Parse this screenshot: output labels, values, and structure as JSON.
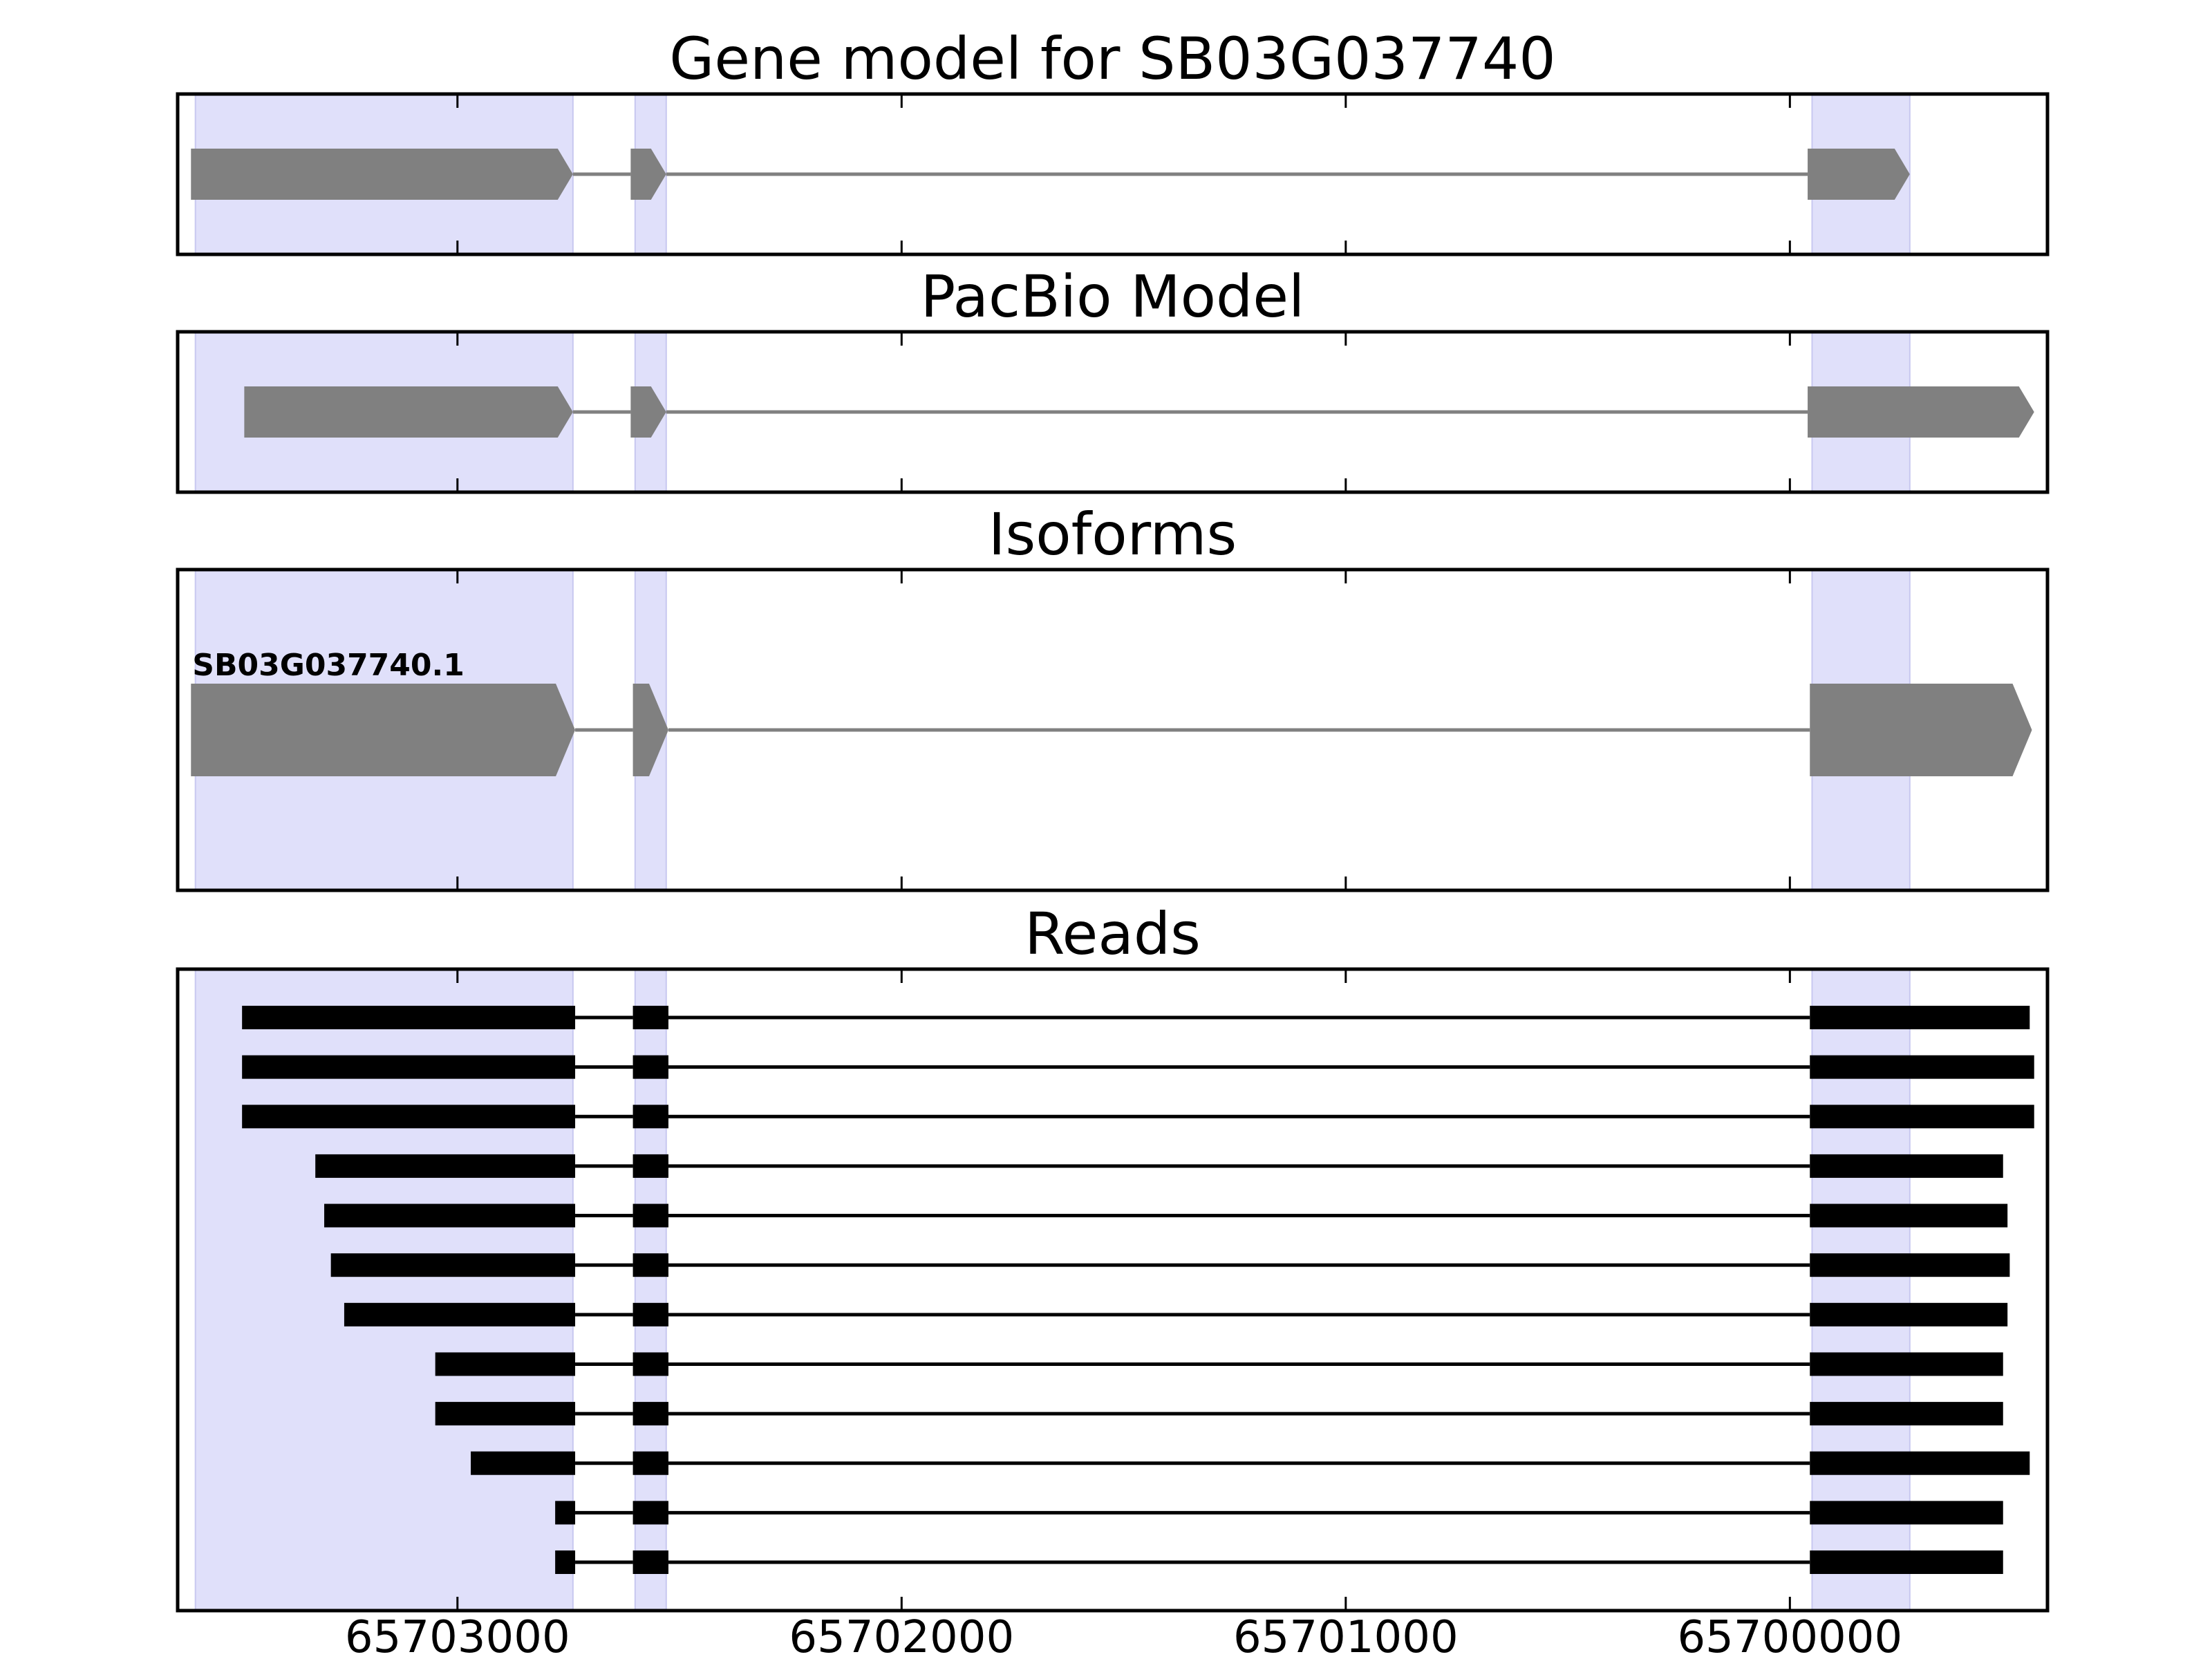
{
  "chart_data": {
    "type": "gene-structure",
    "x_axis": {
      "range": [
        65703630,
        65699420
      ],
      "reversed": true,
      "ticks": [
        65703000,
        65702000,
        65701000,
        65700000
      ],
      "tick_labels": [
        "65703000",
        "65702000",
        "65701000",
        "65700000"
      ]
    },
    "highlight_color": "#e0e0fa",
    "exon_color": "#808080",
    "read_color": "#000000",
    "highlight_regions": [
      [
        65703590,
        65702740
      ],
      [
        65702600,
        65702530
      ],
      [
        65699950,
        65699730
      ]
    ],
    "panels": [
      {
        "title": "Gene model for SB03G037740",
        "kind": "model",
        "models": [
          {
            "label": "",
            "exons": [
              [
                65703600,
                65702740
              ],
              [
                65702610,
                65702530
              ],
              [
                65699960,
                65699730
              ]
            ]
          }
        ]
      },
      {
        "title": "PacBio Model",
        "kind": "model",
        "models": [
          {
            "label": "",
            "exons": [
              [
                65703480,
                65702740
              ],
              [
                65702610,
                65702530
              ],
              [
                65699960,
                65699450
              ]
            ]
          }
        ]
      },
      {
        "title": "Isoforms",
        "kind": "model",
        "models": [
          {
            "label": "SB03G037740.1",
            "exons": [
              [
                65703600,
                65702735
              ],
              [
                65702605,
                65702525
              ],
              [
                65699955,
                65699455
              ]
            ]
          }
        ]
      },
      {
        "title": "Reads",
        "kind": "reads",
        "reads": [
          {
            "exons": [
              [
                65703485,
                65702735
              ],
              [
                65702605,
                65702525
              ],
              [
                65699955,
                65699460
              ]
            ]
          },
          {
            "exons": [
              [
                65703485,
                65702735
              ],
              [
                65702605,
                65702525
              ],
              [
                65699955,
                65699450
              ]
            ]
          },
          {
            "exons": [
              [
                65703485,
                65702735
              ],
              [
                65702605,
                65702525
              ],
              [
                65699955,
                65699450
              ]
            ]
          },
          {
            "exons": [
              [
                65703320,
                65702735
              ],
              [
                65702605,
                65702525
              ],
              [
                65699955,
                65699520
              ]
            ]
          },
          {
            "exons": [
              [
                65703300,
                65702735
              ],
              [
                65702605,
                65702525
              ],
              [
                65699955,
                65699510
              ]
            ]
          },
          {
            "exons": [
              [
                65703285,
                65702735
              ],
              [
                65702605,
                65702525
              ],
              [
                65699955,
                65699505
              ]
            ]
          },
          {
            "exons": [
              [
                65703255,
                65702735
              ],
              [
                65702605,
                65702525
              ],
              [
                65699955,
                65699510
              ]
            ]
          },
          {
            "exons": [
              [
                65703050,
                65702735
              ],
              [
                65702605,
                65702525
              ],
              [
                65699955,
                65699520
              ]
            ]
          },
          {
            "exons": [
              [
                65703050,
                65702735
              ],
              [
                65702605,
                65702525
              ],
              [
                65699955,
                65699520
              ]
            ]
          },
          {
            "exons": [
              [
                65702970,
                65702735
              ],
              [
                65702605,
                65702525
              ],
              [
                65699955,
                65699460
              ]
            ]
          },
          {
            "exons": [
              [
                65702780,
                65702735
              ],
              [
                65702605,
                65702525
              ],
              [
                65699955,
                65699520
              ]
            ]
          },
          {
            "exons": [
              [
                65702780,
                65702735
              ],
              [
                65702605,
                65702525
              ],
              [
                65699955,
                65699520
              ]
            ]
          }
        ]
      }
    ]
  }
}
